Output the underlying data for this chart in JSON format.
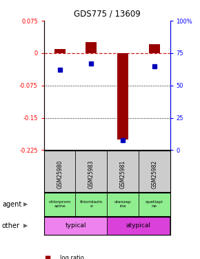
{
  "title": "GDS775 / 13609",
  "samples": [
    "GSM25980",
    "GSM25983",
    "GSM25981",
    "GSM25982"
  ],
  "log_ratios": [
    0.01,
    0.025,
    -0.2,
    0.02
  ],
  "percentile_ranks": [
    62,
    67,
    8,
    65
  ],
  "ylim_left": [
    -0.225,
    0.075
  ],
  "ylim_right": [
    0,
    100
  ],
  "yticks_left": [
    0.075,
    0.0,
    -0.075,
    -0.15,
    -0.225
  ],
  "yticks_right": [
    100,
    75,
    50,
    25,
    0
  ],
  "hlines": [
    -0.075,
    -0.15
  ],
  "agent_labels": [
    "chlorprom\nazine",
    "thioridazin\ne",
    "olanzap\nine",
    "quetiapi\nne"
  ],
  "agent_colors": [
    "#90EE90",
    "#90EE90",
    "#90EE90",
    "#90EE90"
  ],
  "other_groups": [
    {
      "label": "typical",
      "cols": [
        0,
        1
      ],
      "color": "#EE82EE"
    },
    {
      "label": "atypical",
      "cols": [
        2,
        3
      ],
      "color": "#DA40DA"
    }
  ],
  "bar_color": "#990000",
  "dot_color": "#0000BB",
  "dashed_color": "#CC2222",
  "label_bg": "#CCCCCC"
}
